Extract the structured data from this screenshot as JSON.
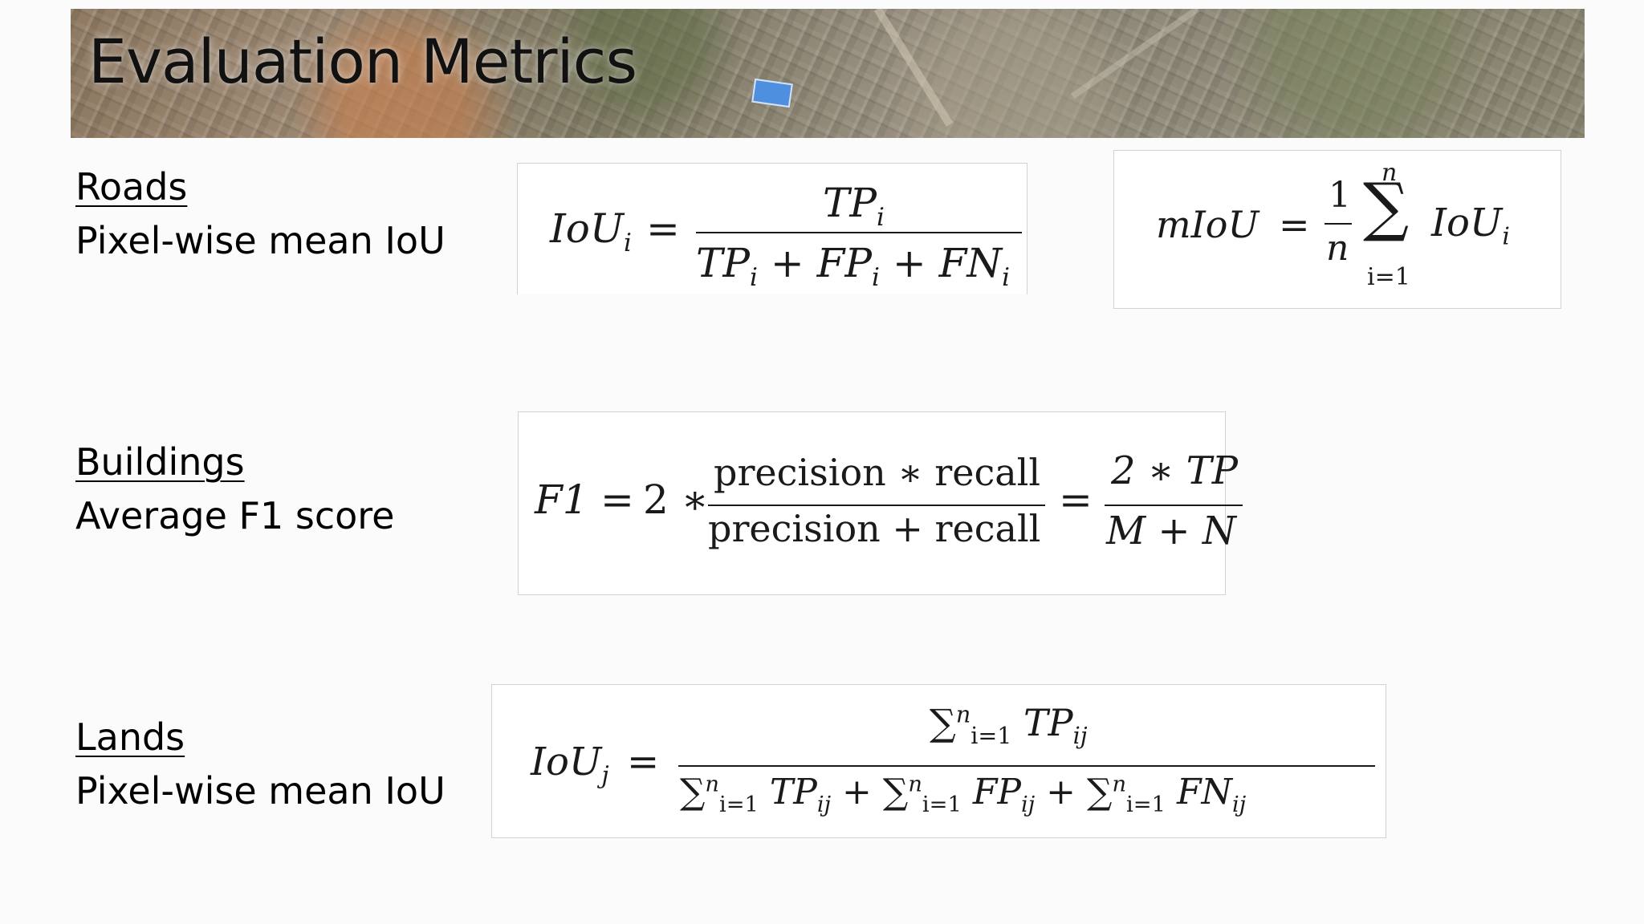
{
  "slide": {
    "title": "Evaluation Metrics"
  },
  "sections": {
    "roads": {
      "heading": "Roads",
      "metric": "Pixel-wise mean IoU"
    },
    "buildings": {
      "heading": "Buildings",
      "metric": "Average F1 score"
    },
    "lands": {
      "heading": "Lands",
      "metric": "Pixel-wise mean IoU"
    }
  },
  "formulas": {
    "iou_i": {
      "lhs_main": "IoU",
      "lhs_sub": "i",
      "equals": "=",
      "numerator": "TP",
      "numerator_sub": "i",
      "den_tp": "TP",
      "den_fp": "FP",
      "den_fn": "FN",
      "den_sub": "i",
      "plus": "+"
    },
    "miou": {
      "lhs": "mIoU",
      "equals": "=",
      "frac_num": "1",
      "frac_den": "n",
      "sum_symbol": "∑",
      "sum_upper": "n",
      "sum_lower": "i=1",
      "term": "IoU",
      "term_sub": "i"
    },
    "f1": {
      "lhs": "F1",
      "equals": "=",
      "coef": "2 ∗",
      "num1": "precision ∗ recall",
      "den1": "precision + recall",
      "num2": "2 ∗ TP",
      "den2": "M + N"
    },
    "iou_j": {
      "lhs_main": "IoU",
      "lhs_sub": "j",
      "equals": "=",
      "sum_symbol": "∑",
      "sum_upper": "n",
      "sum_lower": "i=1",
      "tp": "TP",
      "fp": "FP",
      "fn": "FN",
      "sub_ij": "ij",
      "plus": "+"
    }
  }
}
